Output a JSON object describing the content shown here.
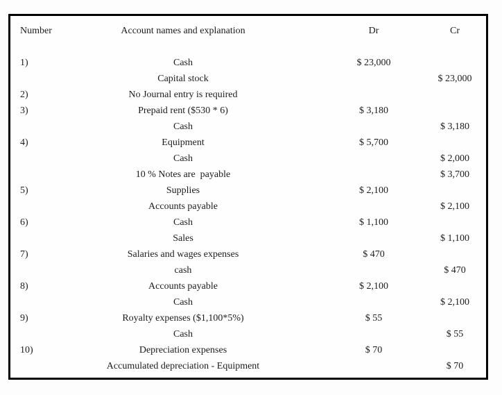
{
  "colors": {
    "border": "#000000",
    "text": "#1c1c1c",
    "background": "#fdfdfd"
  },
  "table": {
    "headers": {
      "number": "Number",
      "account": "Account names and explanation",
      "dr": "Dr",
      "cr": "Cr"
    },
    "rows": [
      {
        "number": "1)",
        "account": "Cash",
        "dr": "$ 23,000",
        "cr": ""
      },
      {
        "number": "",
        "account": "Capital stock",
        "dr": "",
        "cr": "$ 23,000"
      },
      {
        "number": "2)",
        "account": "No Journal entry is required",
        "dr": "",
        "cr": ""
      },
      {
        "number": "3)",
        "account": "Prepaid rent ($530 * 6)",
        "dr": "$ 3,180",
        "cr": ""
      },
      {
        "number": "",
        "account": "Cash",
        "dr": "",
        "cr": "$ 3,180"
      },
      {
        "number": "4)",
        "account": "Equipment",
        "dr": "$ 5,700",
        "cr": ""
      },
      {
        "number": "",
        "account": "Cash",
        "dr": "",
        "cr": "$ 2,000"
      },
      {
        "number": "",
        "account": "10 % Notes are  payable",
        "dr": "",
        "cr": "$ 3,700"
      },
      {
        "number": "5)",
        "account": "Supplies",
        "dr": "$ 2,100",
        "cr": ""
      },
      {
        "number": "",
        "account": "Accounts payable",
        "dr": "",
        "cr": "$ 2,100"
      },
      {
        "number": "6)",
        "account": "Cash",
        "dr": "$ 1,100",
        "cr": ""
      },
      {
        "number": "",
        "account": "Sales",
        "dr": "",
        "cr": "$ 1,100"
      },
      {
        "number": "7)",
        "account": "Salaries and wages expenses",
        "dr": "$ 470",
        "cr": ""
      },
      {
        "number": "",
        "account": "cash",
        "dr": "",
        "cr": "$ 470"
      },
      {
        "number": "8)",
        "account": "Accounts payable",
        "dr": "$ 2,100",
        "cr": ""
      },
      {
        "number": "",
        "account": "Cash",
        "dr": "",
        "cr": "$ 2,100"
      },
      {
        "number": "9)",
        "account": "Royalty expenses ($1,100*5%)",
        "dr": "$ 55",
        "cr": ""
      },
      {
        "number": "",
        "account": "Cash",
        "dr": "",
        "cr": "$ 55"
      },
      {
        "number": "10)",
        "account": "Depreciation expenses",
        "dr": "$ 70",
        "cr": ""
      },
      {
        "number": "",
        "account": "Accumulated depreciation - Equipment",
        "dr": "",
        "cr": "$ 70"
      }
    ]
  }
}
